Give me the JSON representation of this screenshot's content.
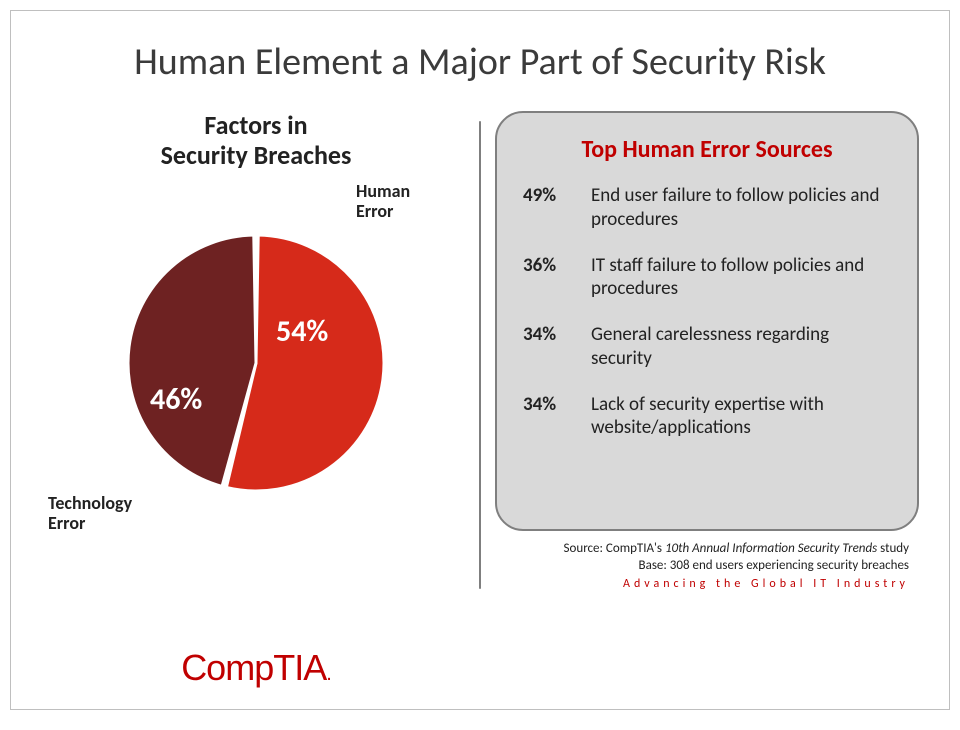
{
  "title": "Human Element a Major Part of Security Risk",
  "accent_color": "#c00000",
  "chart": {
    "type": "pie",
    "title": "Factors in\nSecurity Breaches",
    "slices": [
      {
        "label": "Human Error",
        "value": 54,
        "value_label": "54%",
        "color": "#d62a1a"
      },
      {
        "label": "Technology Error",
        "value": 46,
        "value_label": "46%",
        "color": "#6e2222"
      }
    ],
    "radius": 128,
    "slice_gap_deg": 2,
    "label_color": "#ffffff",
    "label_fontsize": 30,
    "category_fontsize": 18,
    "border_color": "#ffffff",
    "border_width": 3
  },
  "callout": {
    "title": "Top Human Error Sources",
    "bg_color": "#d9d9d9",
    "border_color": "#7f7f7f",
    "items": [
      {
        "pct": "49%",
        "text": "End user failure to follow policies and procedures"
      },
      {
        "pct": "36%",
        "text": "IT staff failure to follow policies and procedures"
      },
      {
        "pct": "34%",
        "text": "General carelessness regarding security"
      },
      {
        "pct": "34%",
        "text": "Lack of security expertise with website/applications"
      }
    ]
  },
  "source": {
    "prefix": "Source: CompTIA's ",
    "study": "10th Annual Information Security Trends",
    "suffix": " study",
    "base": "Base: 308 end users experiencing security breaches"
  },
  "tagline": "Advancing the Global IT Industry",
  "logo": {
    "part1": "Comp",
    "part2": "TIA",
    "dot": "."
  }
}
